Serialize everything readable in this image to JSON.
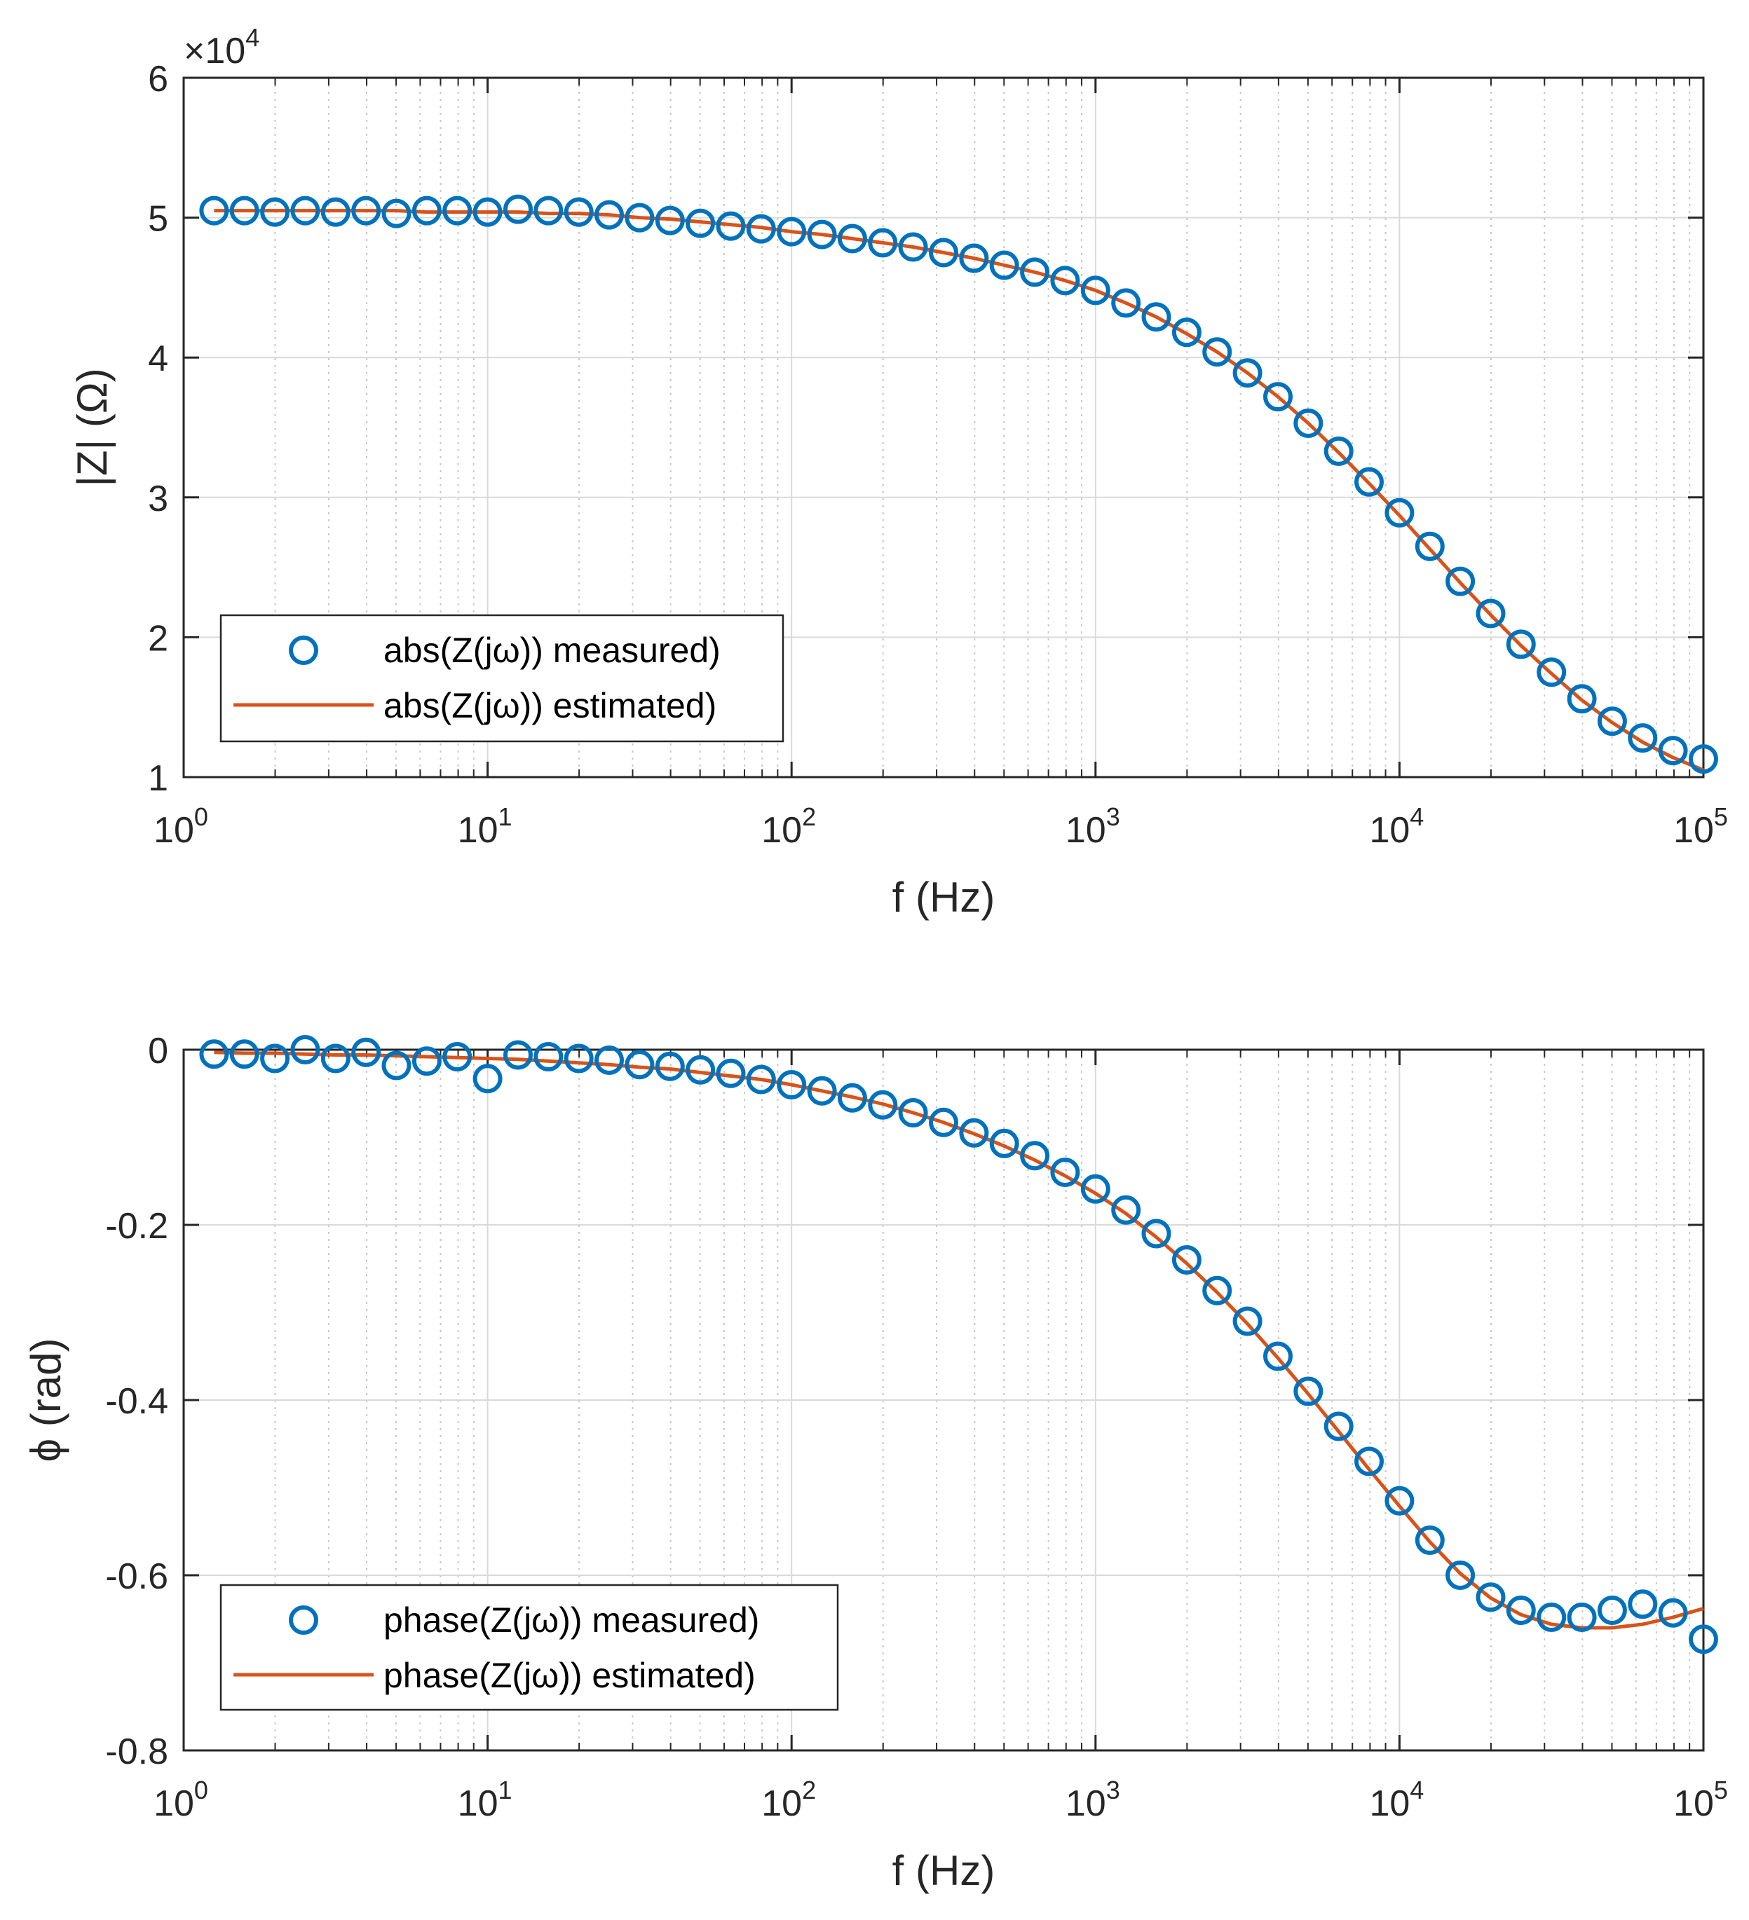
{
  "colors": {
    "measured": "#0072BD",
    "estimated": "#D95319",
    "axis": "#262626",
    "grid": "#d9d9d9",
    "background": "#ffffff"
  },
  "chart_data": [
    {
      "type": "scatter",
      "xscale": "log",
      "xlabel": "f (Hz)",
      "ylabel": "|Z| (Ω)",
      "xlim": [
        1,
        100000
      ],
      "ylim": [
        1,
        6
      ],
      "y_multiplier": "×10",
      "y_multiplier_exp": "4",
      "ytick_labels": [
        "1",
        "2",
        "3",
        "4",
        "5",
        "6"
      ],
      "xtick_base": "10",
      "xtick_exponents": [
        "0",
        "1",
        "2",
        "3",
        "4",
        "5"
      ],
      "grid": true,
      "legend_position": "lower-left",
      "series": [
        {
          "name": "abs(Z(jω)) measured)",
          "style": "circles",
          "x": [
            1.259,
            1.585,
            1.995,
            2.512,
            3.162,
            3.981,
            5.012,
            6.31,
            7.943,
            10,
            12.59,
            15.85,
            19.95,
            25.12,
            31.62,
            39.81,
            50.12,
            63.1,
            79.43,
            100,
            125.9,
            158.5,
            199.5,
            251.2,
            316.2,
            398.1,
            501.2,
            631,
            794.3,
            1000,
            1259,
            1585,
            1995,
            2512,
            3162,
            3981,
            5012,
            6310,
            7943,
            10000,
            12590,
            15850,
            19950,
            25120,
            31620,
            39810,
            50120,
            63100,
            79430,
            100000
          ],
          "values": [
            5.05,
            5.05,
            5.04,
            5.05,
            5.04,
            5.05,
            5.03,
            5.05,
            5.05,
            5.04,
            5.06,
            5.05,
            5.04,
            5.02,
            5.0,
            4.98,
            4.96,
            4.94,
            4.92,
            4.9,
            4.88,
            4.85,
            4.82,
            4.79,
            4.75,
            4.71,
            4.66,
            4.61,
            4.55,
            4.48,
            4.39,
            4.29,
            4.18,
            4.04,
            3.89,
            3.72,
            3.53,
            3.33,
            3.11,
            2.89,
            2.65,
            2.4,
            2.17,
            1.95,
            1.75,
            1.56,
            1.4,
            1.28,
            1.19,
            1.13
          ]
        },
        {
          "name": "abs(Z(jω)) estimated)",
          "style": "line",
          "x": [
            1.259,
            1.585,
            1.995,
            2.512,
            3.162,
            3.981,
            5.012,
            6.31,
            7.943,
            10,
            12.59,
            15.85,
            19.95,
            25.12,
            31.62,
            39.81,
            50.12,
            63.1,
            79.43,
            100,
            125.9,
            158.5,
            199.5,
            251.2,
            316.2,
            398.1,
            501.2,
            631,
            794.3,
            1000,
            1259,
            1585,
            1995,
            2512,
            3162,
            3981,
            5012,
            6310,
            7943,
            10000,
            12590,
            15850,
            19950,
            25120,
            31620,
            39810,
            50120,
            63100,
            79430,
            100000
          ],
          "values": [
            5.05,
            5.05,
            5.05,
            5.05,
            5.05,
            5.05,
            5.05,
            5.04,
            5.04,
            5.04,
            5.04,
            5.03,
            5.03,
            5.02,
            5.0,
            4.99,
            4.97,
            4.95,
            4.93,
            4.9,
            4.88,
            4.85,
            4.82,
            4.79,
            4.75,
            4.71,
            4.66,
            4.61,
            4.55,
            4.48,
            4.39,
            4.29,
            4.17,
            4.04,
            3.89,
            3.72,
            3.53,
            3.32,
            3.1,
            2.87,
            2.63,
            2.39,
            2.16,
            1.94,
            1.74,
            1.55,
            1.39,
            1.25,
            1.14,
            1.05
          ]
        }
      ]
    },
    {
      "type": "scatter",
      "xscale": "log",
      "xlabel": "f (Hz)",
      "ylabel": "ϕ (rad)",
      "xlim": [
        1,
        100000
      ],
      "ylim": [
        -0.8,
        0
      ],
      "ytick_labels": [
        "-0.8",
        "-0.6",
        "-0.4",
        "-0.2",
        "0"
      ],
      "xtick_base": "10",
      "xtick_exponents": [
        "0",
        "1",
        "2",
        "3",
        "4",
        "5"
      ],
      "grid": true,
      "legend_position": "lower-left",
      "series": [
        {
          "name": "phase(Z(jω)) measured)",
          "style": "circles",
          "x": [
            1.259,
            1.585,
            1.995,
            2.512,
            3.162,
            3.981,
            5.012,
            6.31,
            7.943,
            10,
            12.59,
            15.85,
            19.95,
            25.12,
            31.62,
            39.81,
            50.12,
            63.1,
            79.43,
            100,
            125.9,
            158.5,
            199.5,
            251.2,
            316.2,
            398.1,
            501.2,
            631,
            794.3,
            1000,
            1259,
            1585,
            1995,
            2512,
            3162,
            3981,
            5012,
            6310,
            7943,
            10000,
            12590,
            15850,
            19950,
            25120,
            31620,
            39810,
            50120,
            63100,
            79430,
            100000
          ],
          "values": [
            -0.005,
            -0.005,
            -0.01,
            0.0,
            -0.01,
            -0.003,
            -0.018,
            -0.013,
            -0.008,
            -0.033,
            -0.006,
            -0.008,
            -0.01,
            -0.012,
            -0.017,
            -0.019,
            -0.023,
            -0.027,
            -0.034,
            -0.04,
            -0.047,
            -0.055,
            -0.063,
            -0.072,
            -0.083,
            -0.095,
            -0.107,
            -0.121,
            -0.14,
            -0.159,
            -0.183,
            -0.21,
            -0.24,
            -0.275,
            -0.31,
            -0.35,
            -0.39,
            -0.43,
            -0.47,
            -0.515,
            -0.56,
            -0.6,
            -0.625,
            -0.64,
            -0.648,
            -0.648,
            -0.64,
            -0.633,
            -0.643,
            -0.673
          ]
        },
        {
          "name": "phase(Z(jω)) estimated)",
          "style": "line",
          "x": [
            1.259,
            1.585,
            1.995,
            2.512,
            3.162,
            3.981,
            5.012,
            6.31,
            7.943,
            10,
            12.59,
            15.85,
            19.95,
            25.12,
            31.62,
            39.81,
            50.12,
            63.1,
            79.43,
            100,
            125.9,
            158.5,
            199.5,
            251.2,
            316.2,
            398.1,
            501.2,
            631,
            794.3,
            1000,
            1259,
            1585,
            1995,
            2512,
            3162,
            3981,
            5012,
            6310,
            7943,
            10000,
            12590,
            15850,
            19950,
            25120,
            31620,
            39810,
            50120,
            63100,
            79430,
            100000
          ],
          "values": [
            -0.003,
            -0.004,
            -0.004,
            -0.005,
            -0.006,
            -0.006,
            -0.007,
            -0.008,
            -0.009,
            -0.01,
            -0.011,
            -0.013,
            -0.015,
            -0.017,
            -0.02,
            -0.022,
            -0.026,
            -0.03,
            -0.034,
            -0.04,
            -0.047,
            -0.054,
            -0.062,
            -0.072,
            -0.083,
            -0.096,
            -0.11,
            -0.126,
            -0.144,
            -0.164,
            -0.187,
            -0.214,
            -0.244,
            -0.277,
            -0.313,
            -0.352,
            -0.393,
            -0.436,
            -0.479,
            -0.521,
            -0.562,
            -0.598,
            -0.626,
            -0.645,
            -0.656,
            -0.66,
            -0.66,
            -0.656,
            -0.648,
            -0.638
          ]
        }
      ]
    }
  ]
}
